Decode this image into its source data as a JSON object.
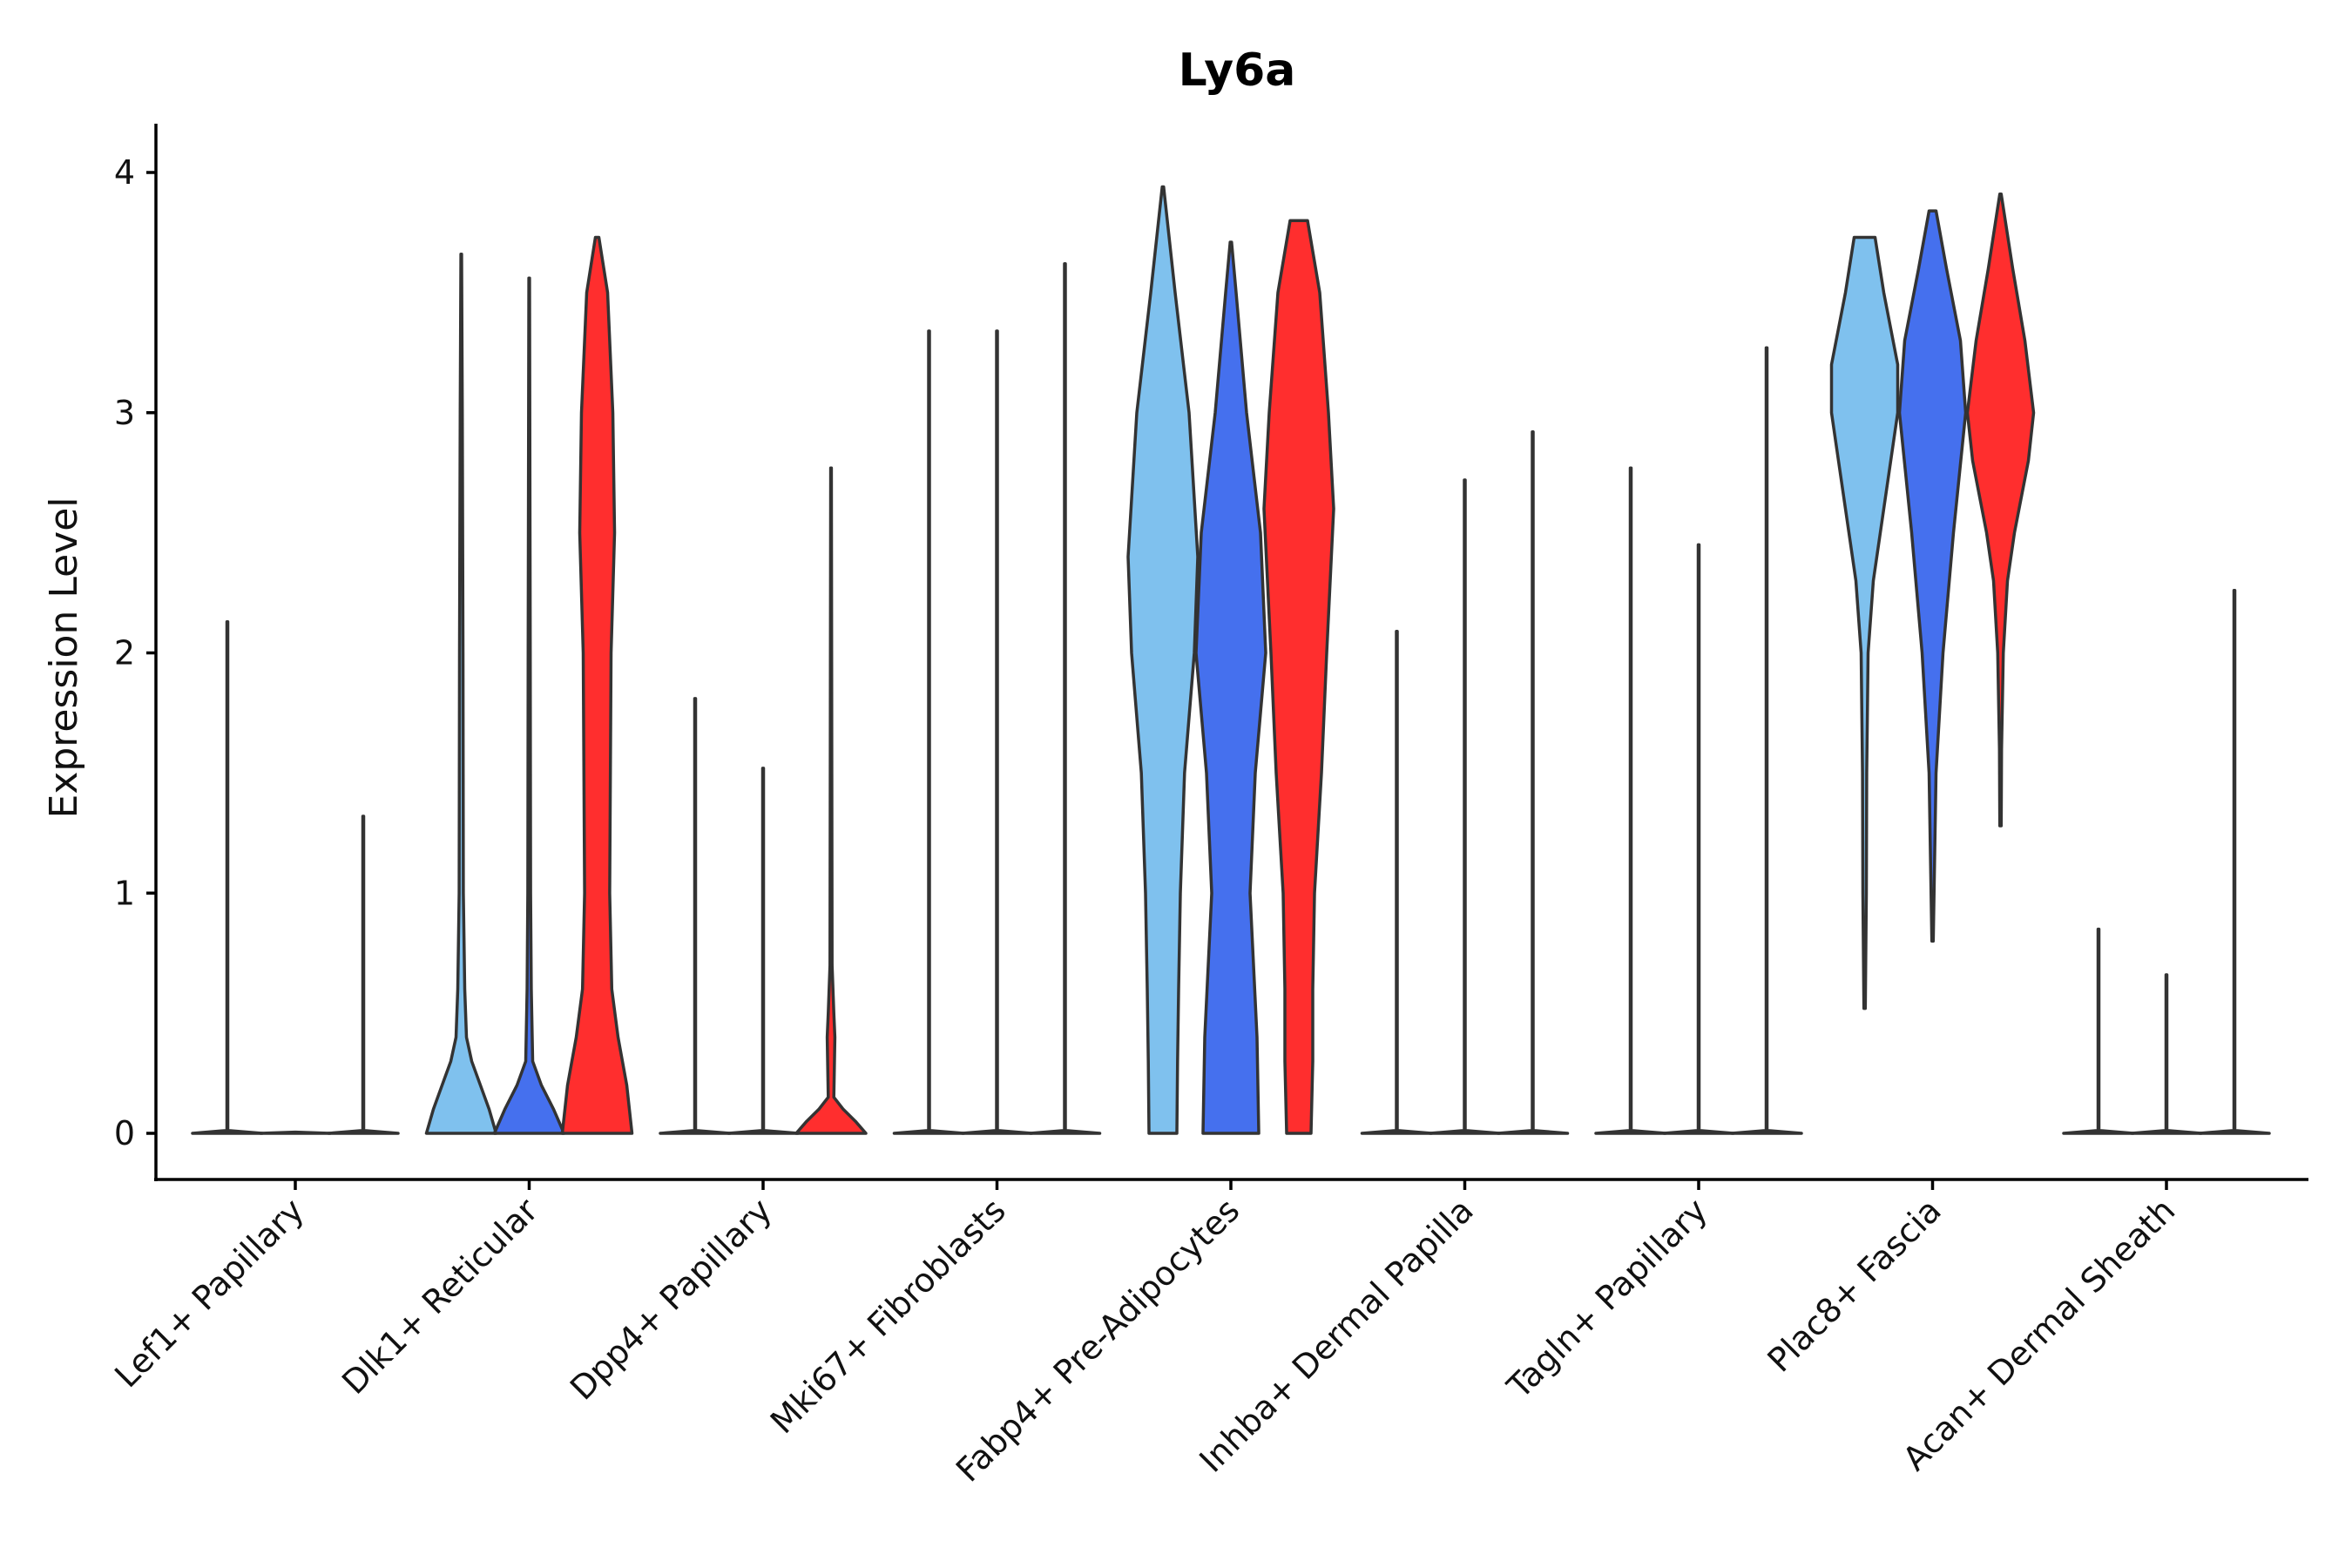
{
  "chart_data": {
    "type": "violin",
    "title": "Ly6a",
    "xlabel": "",
    "ylabel": "Expression Level",
    "ylim": [
      -0.2,
      4.15
    ],
    "yticks": [
      "0",
      "1",
      "2",
      "3",
      "4"
    ],
    "grid": false,
    "legend": "none",
    "colors": [
      "#7fc1ee",
      "#4570ee",
      "#ff2e2e"
    ],
    "outline_color": "#333333",
    "categories": [
      "Lef1+ Papillary",
      "Dlk1+ Reticular",
      "Dpp4+ Papillary",
      "Mki67+ Fibroblasts",
      "Fabp4+ Pre-Adipocytes",
      "Inhba+ Dermal Papilla",
      "Tagln+ Papillary",
      "Plac8+ Fascia",
      "Acan+ Dermal Sheath"
    ],
    "max_values": [
      [
        2.13,
        0,
        1.32
      ],
      [
        3.66,
        3.56,
        3.73
      ],
      [
        1.81,
        1.52,
        2.77
      ],
      [
        3.34,
        3.34,
        3.62
      ],
      [
        3.94,
        3.71,
        3.8
      ],
      [
        2.09,
        2.72,
        2.92
      ],
      [
        2.77,
        2.45,
        3.27
      ],
      [
        3.73,
        3.84,
        3.91
      ],
      [
        0.85,
        0.66,
        2.26
      ]
    ],
    "densities": {
      "Dlk1+ Reticular": [
        [
          [
            0,
            1
          ],
          [
            0.1,
            0.8
          ],
          [
            0.2,
            0.55
          ],
          [
            0.3,
            0.3
          ],
          [
            0.4,
            0.15
          ],
          [
            0.6,
            0.1
          ],
          [
            1,
            0.06
          ],
          [
            2,
            0.05
          ],
          [
            3,
            0.03
          ],
          [
            3.66,
            0.01
          ]
        ],
        [
          [
            0,
            1
          ],
          [
            0.1,
            0.7
          ],
          [
            0.2,
            0.35
          ],
          [
            0.3,
            0.1
          ],
          [
            0.6,
            0.06
          ],
          [
            1,
            0.04
          ],
          [
            2,
            0.03
          ],
          [
            3.56,
            0.01
          ]
        ],
        [
          [
            0,
            1
          ],
          [
            0.2,
            0.85
          ],
          [
            0.4,
            0.6
          ],
          [
            0.6,
            0.42
          ],
          [
            1,
            0.36
          ],
          [
            2,
            0.4
          ],
          [
            2.5,
            0.5
          ],
          [
            3,
            0.45
          ],
          [
            3.5,
            0.3
          ],
          [
            3.73,
            0.05
          ]
        ]
      ],
      "Dpp4+ Papillary_red": [
        [
          0,
          1
        ],
        [
          0.05,
          0.7
        ],
        [
          0.1,
          0.35
        ],
        [
          0.15,
          0.08
        ],
        [
          0.4,
          0.11
        ],
        [
          0.5,
          0.08
        ],
        [
          0.7,
          0.03
        ],
        [
          2.77,
          0.01
        ]
      ],
      "Fabp4+ Pre-Adipocytes": [
        [
          [
            0,
            0.4
          ],
          [
            0.3,
            0.42
          ],
          [
            0.6,
            0.45
          ],
          [
            1,
            0.5
          ],
          [
            1.5,
            0.62
          ],
          [
            2,
            0.9
          ],
          [
            2.4,
            1.0
          ],
          [
            3,
            0.75
          ],
          [
            3.5,
            0.35
          ],
          [
            3.94,
            0.02
          ]
        ],
        [
          [
            0,
            0.8
          ],
          [
            0.4,
            0.75
          ],
          [
            1,
            0.55
          ],
          [
            1.5,
            0.7
          ],
          [
            2,
            1.0
          ],
          [
            2.5,
            0.85
          ],
          [
            3,
            0.45
          ],
          [
            3.5,
            0.15
          ],
          [
            3.71,
            0.02
          ]
        ],
        [
          [
            0,
            0.35
          ],
          [
            0.3,
            0.4
          ],
          [
            0.6,
            0.4
          ],
          [
            1,
            0.45
          ],
          [
            1.5,
            0.65
          ],
          [
            2,
            0.8
          ],
          [
            2.6,
            1.0
          ],
          [
            3,
            0.85
          ],
          [
            3.5,
            0.6
          ],
          [
            3.8,
            0.25
          ]
        ]
      ],
      "Plac8+ Fascia": [
        [
          [
            0.52,
            0.02
          ],
          [
            1,
            0.05
          ],
          [
            1.5,
            0.06
          ],
          [
            2,
            0.1
          ],
          [
            2.3,
            0.25
          ],
          [
            2.5,
            0.45
          ],
          [
            3,
            0.95
          ],
          [
            3.2,
            0.95
          ],
          [
            3.5,
            0.55
          ],
          [
            3.73,
            0.3
          ]
        ],
        [
          [
            0.8,
            0.02
          ],
          [
            1.5,
            0.1
          ],
          [
            2,
            0.3
          ],
          [
            2.5,
            0.6
          ],
          [
            3,
            0.95
          ],
          [
            3.3,
            0.8
          ],
          [
            3.6,
            0.4
          ],
          [
            3.84,
            0.1
          ]
        ],
        [
          [
            1.28,
            0.02
          ],
          [
            1.6,
            0.03
          ],
          [
            2,
            0.08
          ],
          [
            2.3,
            0.2
          ],
          [
            2.5,
            0.4
          ],
          [
            2.8,
            0.8
          ],
          [
            3,
            0.95
          ],
          [
            3.3,
            0.7
          ],
          [
            3.6,
            0.35
          ],
          [
            3.91,
            0.02
          ]
        ]
      ]
    }
  }
}
